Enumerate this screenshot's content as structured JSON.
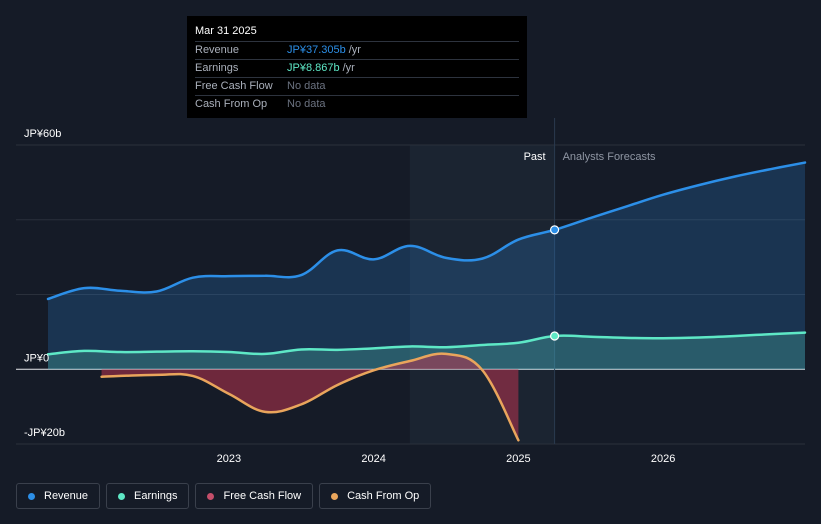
{
  "colors": {
    "revenue": "#2c8fe8",
    "earnings": "#5ee8c6",
    "free_cash_flow": "#c44e6a",
    "cash_from_op": "#e9a55c",
    "background": "#151b27",
    "grid": "#2a303b"
  },
  "tooltip": {
    "date": "Mar 31 2025",
    "rows": [
      {
        "name": "Revenue",
        "value": "JP¥37.305b",
        "unit": "/yr"
      },
      {
        "name": "Earnings",
        "value": "JP¥8.867b",
        "unit": "/yr"
      },
      {
        "name": "Free Cash Flow",
        "value": "No data",
        "unit": ""
      },
      {
        "name": "Cash From Op",
        "value": "No data",
        "unit": ""
      }
    ]
  },
  "legend": {
    "items": [
      {
        "label": "Revenue",
        "color_key": "revenue"
      },
      {
        "label": "Earnings",
        "color_key": "earnings"
      },
      {
        "label": "Free Cash Flow",
        "color_key": "free_cash_flow"
      },
      {
        "label": "Cash From Op",
        "color_key": "cash_from_op"
      }
    ]
  },
  "chart_data": {
    "type": "line",
    "title": "",
    "xlabel": "",
    "ylabel": "",
    "y_tick_labels": [
      "JP¥60b",
      "JP¥0",
      "-JP¥20b"
    ],
    "x_tick_labels": [
      "2023",
      "2024",
      "2025",
      "2026"
    ],
    "x_ticks": [
      2023,
      2024,
      2025,
      2026
    ],
    "xlim": [
      2021.75,
      2026.98
    ],
    "ylim": [
      -20,
      60
    ],
    "grid": true,
    "past_label": "Past",
    "forecast_label": "Analysts Forecasts",
    "past_region": [
      2024.25,
      2025.25
    ],
    "forecast_start": 2025.25,
    "highlight_x": 2025.25,
    "series": [
      {
        "name": "Revenue",
        "color_key": "revenue",
        "area": true,
        "points": [
          [
            2021.75,
            18.8
          ],
          [
            2022.0,
            21.7
          ],
          [
            2022.25,
            21.0
          ],
          [
            2022.5,
            20.8
          ],
          [
            2022.75,
            24.5
          ],
          [
            2023.0,
            24.9
          ],
          [
            2023.25,
            25.0
          ],
          [
            2023.5,
            25.2
          ],
          [
            2023.75,
            31.8
          ],
          [
            2024.0,
            29.4
          ],
          [
            2024.25,
            33.0
          ],
          [
            2024.5,
            29.8
          ],
          [
            2024.75,
            29.6
          ],
          [
            2025.0,
            34.7
          ],
          [
            2025.25,
            37.3
          ],
          [
            2025.5,
            40.5
          ],
          [
            2025.75,
            43.6
          ],
          [
            2026.0,
            46.7
          ],
          [
            2026.25,
            49.3
          ],
          [
            2026.5,
            51.6
          ],
          [
            2026.75,
            53.6
          ],
          [
            2026.98,
            55.3
          ]
        ]
      },
      {
        "name": "Earnings",
        "color_key": "earnings",
        "area": true,
        "points": [
          [
            2021.75,
            4.0
          ],
          [
            2022.0,
            4.9
          ],
          [
            2022.25,
            4.6
          ],
          [
            2022.5,
            4.7
          ],
          [
            2022.75,
            4.8
          ],
          [
            2023.0,
            4.6
          ],
          [
            2023.25,
            4.1
          ],
          [
            2023.5,
            5.3
          ],
          [
            2023.75,
            5.2
          ],
          [
            2024.0,
            5.6
          ],
          [
            2024.25,
            6.1
          ],
          [
            2024.5,
            5.9
          ],
          [
            2024.75,
            6.5
          ],
          [
            2025.0,
            7.1
          ],
          [
            2025.25,
            8.9
          ],
          [
            2025.5,
            8.7
          ],
          [
            2025.75,
            8.4
          ],
          [
            2026.0,
            8.3
          ],
          [
            2026.25,
            8.5
          ],
          [
            2026.5,
            8.9
          ],
          [
            2026.75,
            9.4
          ],
          [
            2026.98,
            9.8
          ]
        ]
      },
      {
        "name": "Free Cash Flow",
        "color_key": "free_cash_flow",
        "area": true,
        "points": [
          [
            2022.12,
            -2.0
          ],
          [
            2022.5,
            -1.5
          ],
          [
            2022.75,
            -1.8
          ],
          [
            2023.0,
            -6.6
          ],
          [
            2023.25,
            -11.4
          ],
          [
            2023.5,
            -9.4
          ],
          [
            2023.75,
            -4.2
          ],
          [
            2024.0,
            -0.3
          ],
          [
            2024.25,
            2.2
          ],
          [
            2024.5,
            4.1
          ],
          [
            2024.75,
            -0.2
          ],
          [
            2025.0,
            -19.0
          ]
        ]
      },
      {
        "name": "Cash From Op",
        "color_key": "cash_from_op",
        "area": false,
        "points": [
          [
            2022.12,
            -2.0
          ],
          [
            2022.5,
            -1.5
          ],
          [
            2022.75,
            -1.8
          ],
          [
            2023.0,
            -6.6
          ],
          [
            2023.25,
            -11.4
          ],
          [
            2023.5,
            -9.4
          ],
          [
            2023.75,
            -4.2
          ],
          [
            2024.0,
            -0.3
          ],
          [
            2024.25,
            2.2
          ],
          [
            2024.5,
            4.1
          ],
          [
            2024.75,
            -0.2
          ],
          [
            2025.0,
            -19.0
          ]
        ]
      }
    ]
  }
}
